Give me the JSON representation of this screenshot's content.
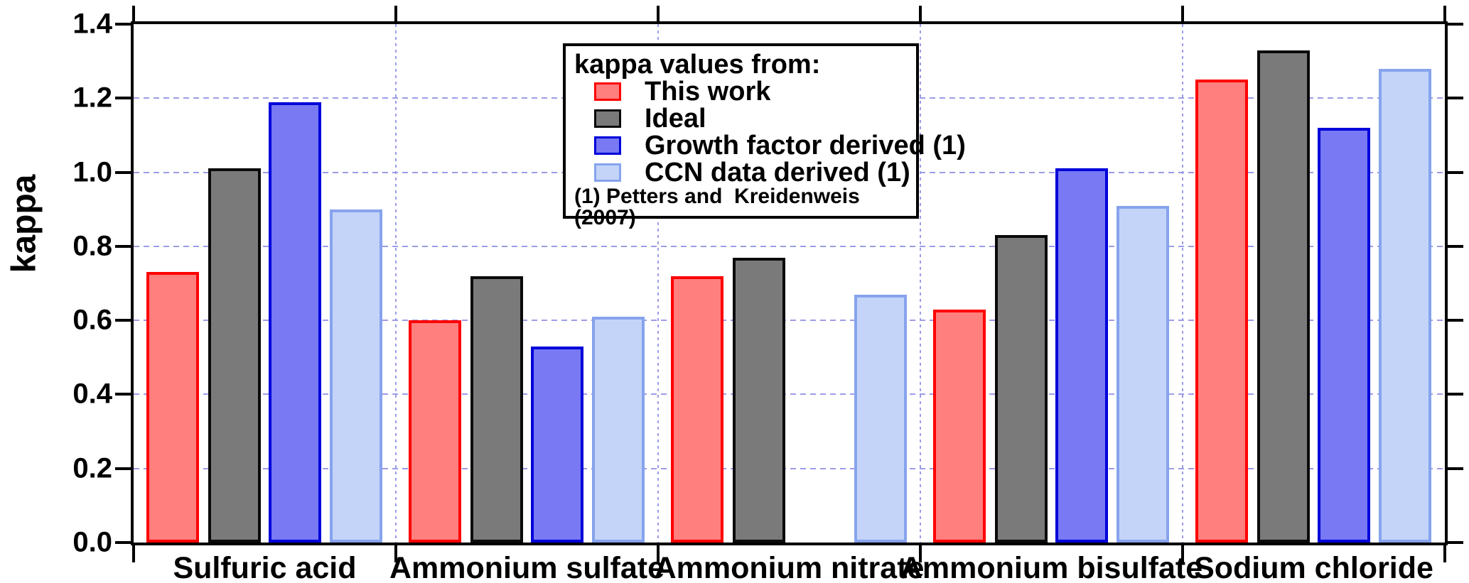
{
  "chart_data": {
    "type": "bar",
    "title": "",
    "ylabel": "kappa",
    "xlabel": "",
    "ylim": [
      0,
      1.4
    ],
    "grid": "dashed horizontal at 0.2 steps and vertical at group boundaries",
    "grid_color": "#9C9CE8",
    "axis_color": "#000000",
    "background_color": "#FFFFFF",
    "yticks": [
      {
        "label": "0.0",
        "value": 0.0
      },
      {
        "label": "0.2",
        "value": 0.2
      },
      {
        "label": "0.4",
        "value": 0.4
      },
      {
        "label": "0.6",
        "value": 0.6
      },
      {
        "label": "0.8",
        "value": 0.8
      },
      {
        "label": "1.0",
        "value": 1.0
      },
      {
        "label": "1.2",
        "value": 1.2
      },
      {
        "label": "1.4",
        "value": 1.4
      }
    ],
    "gridline_values": [
      0.2,
      0.4,
      0.6,
      0.8,
      1.0,
      1.2
    ],
    "categories": [
      "Sulfuric acid",
      "Ammonium sulfate",
      "Ammonium nitrate",
      "Ammonium bisulfate",
      "Sodium chloride"
    ],
    "series": [
      {
        "name": "This work",
        "fill": "#FF7E7E",
        "border": "#FF0000",
        "values": [
          0.73,
          0.6,
          0.72,
          0.63,
          1.25
        ]
      },
      {
        "name": "Ideal",
        "fill": "#7A7A7A",
        "border": "#0A0A0A",
        "values": [
          1.01,
          0.72,
          0.77,
          0.83,
          1.33
        ]
      },
      {
        "name": "Growth factor derived (1)",
        "fill": "#7879F3",
        "border": "#0000D9",
        "values": [
          1.19,
          0.53,
          null,
          1.01,
          1.12
        ]
      },
      {
        "name": "CCN data derived (1)",
        "fill": "#C4D4F8",
        "border": "#86A3ED",
        "values": [
          0.9,
          0.61,
          0.67,
          0.91,
          1.28
        ]
      }
    ],
    "legend": {
      "title": "kappa values from:",
      "footnote": "(1) Petters and  Kreidenweis (2007)",
      "position": "inside top-center"
    }
  }
}
